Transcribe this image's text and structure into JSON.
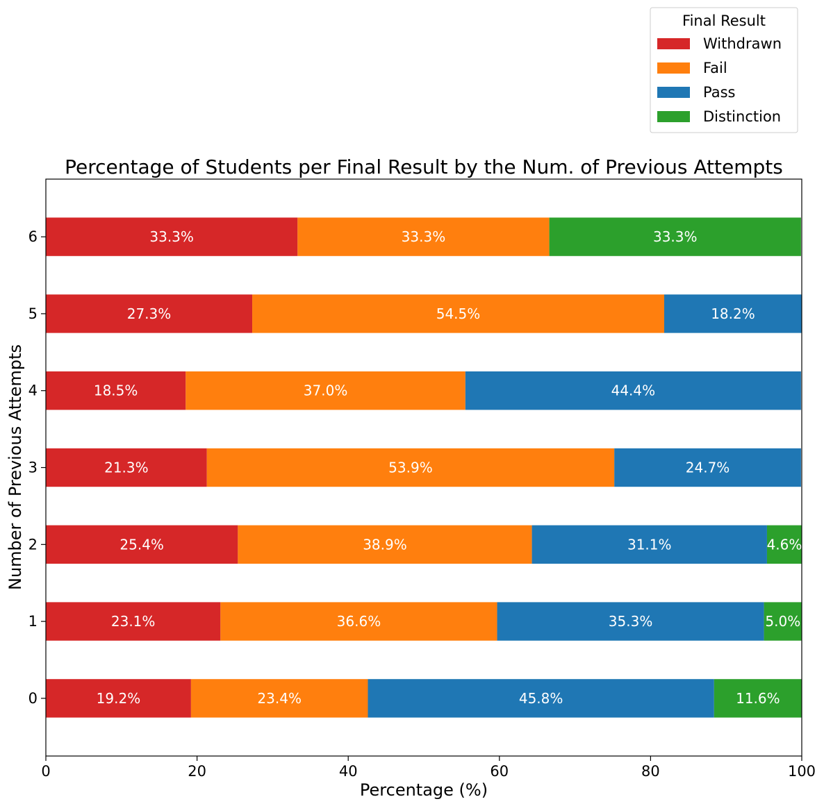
{
  "chart_data": {
    "type": "bar",
    "orientation": "horizontal",
    "stacked": true,
    "title": "Percentage of Students per Final Result by the Num. of Previous Attempts",
    "xlabel": "Percentage (%)",
    "ylabel": "Number of Previous Attempts",
    "xlim": [
      0,
      100
    ],
    "xticks": [
      "0",
      "20",
      "40",
      "60",
      "80",
      "100"
    ],
    "categories": [
      "0",
      "1",
      "2",
      "3",
      "4",
      "5",
      "6"
    ],
    "legend": {
      "title": "Final Result",
      "placement": "top-right, outside plot"
    },
    "series": [
      {
        "name": "Withdrawn",
        "color": "#d62728",
        "values": [
          19.2,
          23.1,
          25.4,
          21.3,
          18.5,
          27.3,
          33.3
        ],
        "labels": [
          "19.2%",
          "23.1%",
          "25.4%",
          "21.3%",
          "18.5%",
          "27.3%",
          "33.3%"
        ]
      },
      {
        "name": "Fail",
        "color": "#ff7f0e",
        "values": [
          23.4,
          36.6,
          38.9,
          53.9,
          37.0,
          54.5,
          33.3
        ],
        "labels": [
          "23.4%",
          "36.6%",
          "38.9%",
          "53.9%",
          "37.0%",
          "54.5%",
          "33.3%"
        ]
      },
      {
        "name": "Pass",
        "color": "#1f77b4",
        "values": [
          45.8,
          35.3,
          31.1,
          24.7,
          44.4,
          18.2,
          0
        ],
        "labels": [
          "45.8%",
          "35.3%",
          "31.1%",
          "24.7%",
          "44.4%",
          "18.2%",
          ""
        ]
      },
      {
        "name": "Distinction",
        "color": "#2ca02c",
        "values": [
          11.6,
          5.0,
          4.6,
          0,
          0,
          0,
          33.3
        ],
        "labels": [
          "11.6%",
          "5.0%",
          "4.6%",
          "",
          "",
          "",
          "33.3%"
        ]
      }
    ]
  }
}
